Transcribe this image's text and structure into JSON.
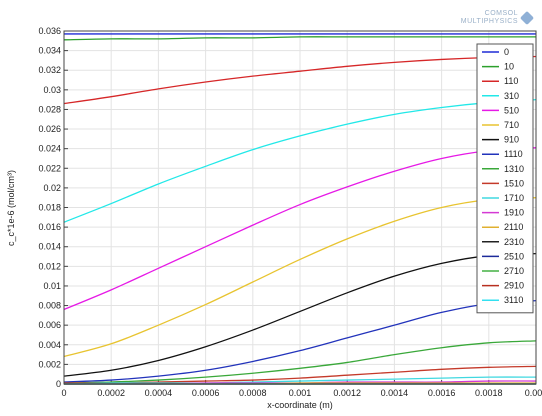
{
  "logo": {
    "line1": "COMSOL",
    "line2": "MULTIPHYSICS"
  },
  "chart_data": {
    "type": "line",
    "title": "",
    "xlabel": "x-coordinate (m)",
    "ylabel": "c_c*1e-6 (mol/cm³)",
    "xlim": [
      0,
      0.002
    ],
    "ylim": [
      0,
      0.036
    ],
    "x_ticks": [
      "0",
      "0.0002",
      "0.0004",
      "0.0006",
      "0.0008",
      "0.001",
      "0.0012",
      "0.0014",
      "0.0016",
      "0.0018",
      "0.002"
    ],
    "y_ticks": [
      "0",
      "0.002",
      "0.004",
      "0.006",
      "0.008",
      "0.01",
      "0.012",
      "0.014",
      "0.016",
      "0.018",
      "0.02",
      "0.022",
      "0.024",
      "0.026",
      "0.028",
      "0.03",
      "0.032",
      "0.034",
      "0.036"
    ],
    "grid": true,
    "legend_position": "top-right",
    "x": [
      0,
      0.0002,
      0.0004,
      0.0006,
      0.0008,
      0.001,
      0.0012,
      0.0014,
      0.0016,
      0.0018,
      0.002
    ],
    "series": [
      {
        "name": "0",
        "color": "#1f2bd6",
        "values": [
          0.0357,
          0.0357,
          0.0357,
          0.0357,
          0.0357,
          0.0357,
          0.0357,
          0.0357,
          0.0357,
          0.0357,
          0.0357
        ]
      },
      {
        "name": "10",
        "color": "#2ca02c",
        "values": [
          0.0351,
          0.0352,
          0.0352,
          0.0353,
          0.0353,
          0.0354,
          0.0354,
          0.0354,
          0.0354,
          0.0354,
          0.0354
        ]
      },
      {
        "name": "110",
        "color": "#d62728",
        "values": [
          0.0286,
          0.0293,
          0.0301,
          0.0308,
          0.0314,
          0.0319,
          0.0324,
          0.0328,
          0.0331,
          0.0333,
          0.0334
        ]
      },
      {
        "name": "310",
        "color": "#22e8e8",
        "values": [
          0.0165,
          0.0184,
          0.0204,
          0.0222,
          0.0239,
          0.0253,
          0.0265,
          0.0275,
          0.0282,
          0.0287,
          0.029
        ]
      },
      {
        "name": "510",
        "color": "#e619e6",
        "values": [
          0.0076,
          0.0096,
          0.0118,
          0.014,
          0.0162,
          0.0183,
          0.0201,
          0.0217,
          0.023,
          0.0238,
          0.0241
        ]
      },
      {
        "name": "710",
        "color": "#e8c430",
        "values": [
          0.0028,
          0.0041,
          0.006,
          0.0081,
          0.0104,
          0.0127,
          0.0148,
          0.0166,
          0.018,
          0.0188,
          0.019
        ]
      },
      {
        "name": "910",
        "color": "#111111",
        "values": [
          0.0008,
          0.0014,
          0.0024,
          0.0038,
          0.0055,
          0.0074,
          0.0093,
          0.011,
          0.0123,
          0.0131,
          0.0133
        ]
      },
      {
        "name": "1110",
        "color": "#2233bb",
        "values": [
          0.0002,
          0.0004,
          0.0008,
          0.0014,
          0.0023,
          0.0034,
          0.0047,
          0.006,
          0.0073,
          0.0082,
          0.0085
        ]
      },
      {
        "name": "1310",
        "color": "#3aa83a",
        "values": [
          0.0001,
          0.0002,
          0.0004,
          0.0007,
          0.0011,
          0.0016,
          0.0022,
          0.003,
          0.0037,
          0.0042,
          0.0044
        ]
      },
      {
        "name": "1510",
        "color": "#c43a2a",
        "values": [
          0.0001,
          0.0001,
          0.0002,
          0.0003,
          0.0004,
          0.0006,
          0.0009,
          0.0012,
          0.0015,
          0.0017,
          0.0018
        ]
      },
      {
        "name": "1710",
        "color": "#40d8e0",
        "values": [
          0.0,
          0.0001,
          0.0001,
          0.0001,
          0.0002,
          0.0003,
          0.0004,
          0.0005,
          0.0006,
          0.0007,
          0.0007
        ]
      },
      {
        "name": "1910",
        "color": "#d43ad4",
        "values": [
          0.0,
          0.0,
          0.0,
          0.0001,
          0.0001,
          0.0001,
          0.0002,
          0.0002,
          0.0002,
          0.0003,
          0.0003
        ]
      },
      {
        "name": "2110",
        "color": "#e0b030",
        "values": [
          0,
          0,
          0,
          0,
          0,
          0.0001,
          0.0001,
          0.0001,
          0.0001,
          0.0001,
          0.0001
        ]
      },
      {
        "name": "2310",
        "color": "#222222",
        "values": [
          0,
          0,
          0,
          0,
          0,
          0,
          0,
          0,
          0,
          0,
          0
        ]
      },
      {
        "name": "2510",
        "color": "#1c2a9a",
        "values": [
          0,
          0,
          0,
          0,
          0,
          0,
          0,
          0,
          0,
          0,
          0
        ]
      },
      {
        "name": "2710",
        "color": "#44b044",
        "values": [
          0,
          0,
          0,
          0,
          0,
          0,
          0,
          0,
          0,
          0,
          0
        ]
      },
      {
        "name": "2910",
        "color": "#b83020",
        "values": [
          0,
          0,
          0,
          0,
          0,
          0,
          0,
          0,
          0,
          0,
          0
        ]
      },
      {
        "name": "3110",
        "color": "#33e0f0",
        "values": [
          0,
          0,
          0,
          0,
          0,
          0,
          0,
          0,
          0,
          0,
          0
        ]
      }
    ]
  }
}
